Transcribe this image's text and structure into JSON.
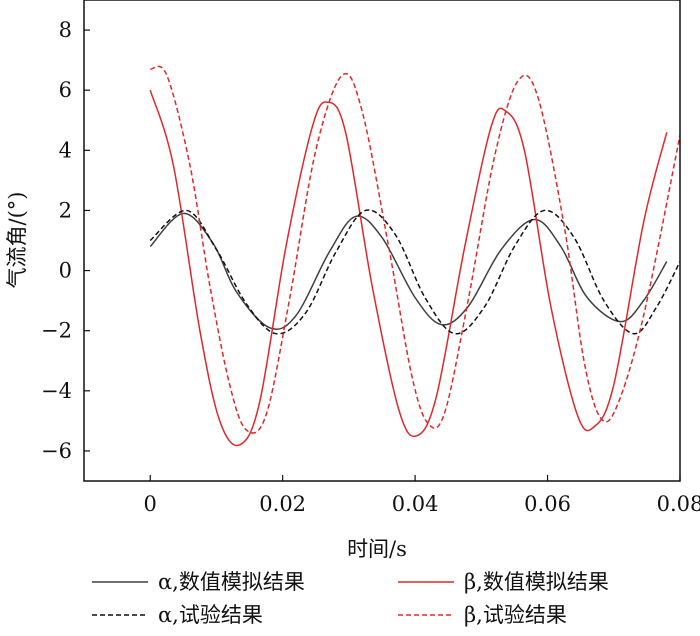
{
  "chart_data": {
    "type": "line",
    "xlabel": "时间/s",
    "ylabel": "气流角/(°)",
    "xlim": [
      -0.01,
      0.08
    ],
    "ylim": [
      -7,
      9
    ],
    "x_ticks": [
      0,
      0.02,
      0.04,
      0.06,
      0.08
    ],
    "x_tick_labels": [
      "0",
      "0.02",
      "0.04",
      "0.06",
      "0.08"
    ],
    "y_ticks": [
      -6,
      -4,
      -2,
      0,
      2,
      4,
      6,
      8
    ],
    "y_tick_labels": [
      "−6",
      "−4",
      "−2",
      "0",
      "2",
      "4",
      "6",
      "8"
    ],
    "grid": false,
    "legend_position": "bottom",
    "series": [
      {
        "name": "α,数值模拟结果",
        "color": "#404040",
        "dash": "solid",
        "x": [
          0,
          0.005,
          0.0095,
          0.013,
          0.018,
          0.022,
          0.027,
          0.031,
          0.035,
          0.04,
          0.044,
          0.048,
          0.053,
          0.058,
          0.062,
          0.066,
          0.071,
          0.0745,
          0.078
        ],
        "y": [
          0.8,
          1.9,
          0.9,
          -0.7,
          -1.9,
          -1.5,
          0.6,
          1.8,
          1.1,
          -0.9,
          -1.8,
          -1.2,
          0.7,
          1.7,
          0.8,
          -0.9,
          -1.7,
          -1.0,
          0.3
        ]
      },
      {
        "name": "β,数值模拟结果",
        "color": "#e0282c",
        "dash": "solid",
        "x": [
          0,
          0.0035,
          0.0075,
          0.0105,
          0.0135,
          0.0165,
          0.0205,
          0.0245,
          0.0268,
          0.0295,
          0.0335,
          0.0375,
          0.0402,
          0.0432,
          0.0475,
          0.0515,
          0.0537,
          0.0565,
          0.0605,
          0.0645,
          0.067,
          0.07,
          0.0745,
          0.078
        ],
        "y": [
          6.0,
          3.5,
          -2.0,
          -5.0,
          -5.8,
          -4.4,
          0.8,
          4.8,
          5.6,
          4.6,
          -0.5,
          -4.6,
          -5.5,
          -4.2,
          0.8,
          4.8,
          5.3,
          4.0,
          -1.2,
          -4.8,
          -5.2,
          -3.8,
          1.6,
          4.6
        ]
      },
      {
        "name": "α,试验结果",
        "color": "#111111",
        "dash": "dashed",
        "x": [
          0,
          0.0055,
          0.01,
          0.0145,
          0.019,
          0.0235,
          0.028,
          0.0325,
          0.037,
          0.0415,
          0.046,
          0.0505,
          0.055,
          0.0595,
          0.064,
          0.0685,
          0.073,
          0.0765,
          0.08
        ],
        "y": [
          1.0,
          2.0,
          0.7,
          -1.1,
          -2.1,
          -1.4,
          0.6,
          2.0,
          1.2,
          -0.9,
          -2.1,
          -1.2,
          0.8,
          2.0,
          1.1,
          -1.0,
          -2.1,
          -1.2,
          0.3
        ]
      },
      {
        "name": "β,试验结果",
        "color": "#e0282c",
        "dash": "dashed",
        "x": [
          0,
          0.0025,
          0.006,
          0.009,
          0.012,
          0.0145,
          0.0175,
          0.021,
          0.025,
          0.029,
          0.032,
          0.036,
          0.0395,
          0.042,
          0.0445,
          0.048,
          0.052,
          0.0555,
          0.0585,
          0.0625,
          0.0655,
          0.068,
          0.0705,
          0.0745,
          0.08
        ],
        "y": [
          6.7,
          6.5,
          3.5,
          -0.5,
          -3.8,
          -5.3,
          -4.8,
          -1.0,
          4.0,
          6.5,
          5.3,
          0.8,
          -3.5,
          -5.1,
          -4.7,
          -1.0,
          3.8,
          6.3,
          5.8,
          1.5,
          -3.0,
          -4.9,
          -4.5,
          -1.5,
          4.5
        ]
      }
    ]
  }
}
